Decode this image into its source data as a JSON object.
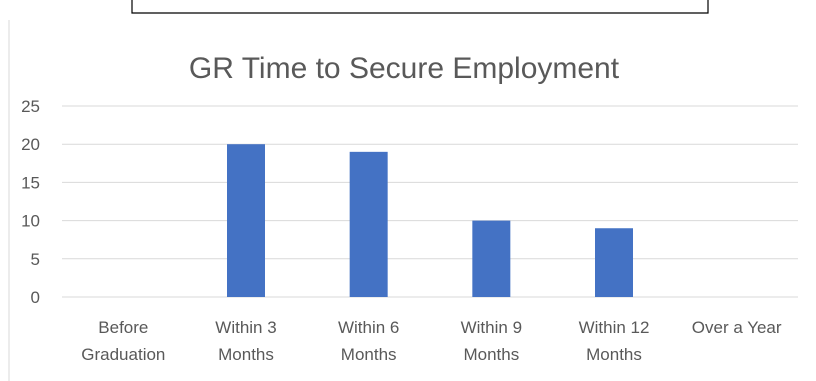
{
  "chart_data": {
    "type": "bar",
    "title": "GR Time to Secure Employment",
    "categories": [
      [
        "Before",
        "Graduation"
      ],
      [
        "Within 3",
        "Months"
      ],
      [
        "Within 6",
        "Months"
      ],
      [
        "Within 9",
        "Months"
      ],
      [
        "Within 12",
        "Months"
      ],
      [
        "Over a Year"
      ]
    ],
    "values": [
      0,
      20,
      19,
      10,
      9,
      0
    ],
    "ylim": [
      0,
      25
    ],
    "yticks": [
      0,
      5,
      10,
      15,
      20,
      25
    ],
    "grid": true,
    "legend": "none",
    "xlabel": "",
    "ylabel": "",
    "colors": {
      "bar": "#4472C4",
      "grid": "#D9D9D9",
      "axis": "#D9D9D9",
      "text": "#595959",
      "frame": "#000000"
    }
  }
}
